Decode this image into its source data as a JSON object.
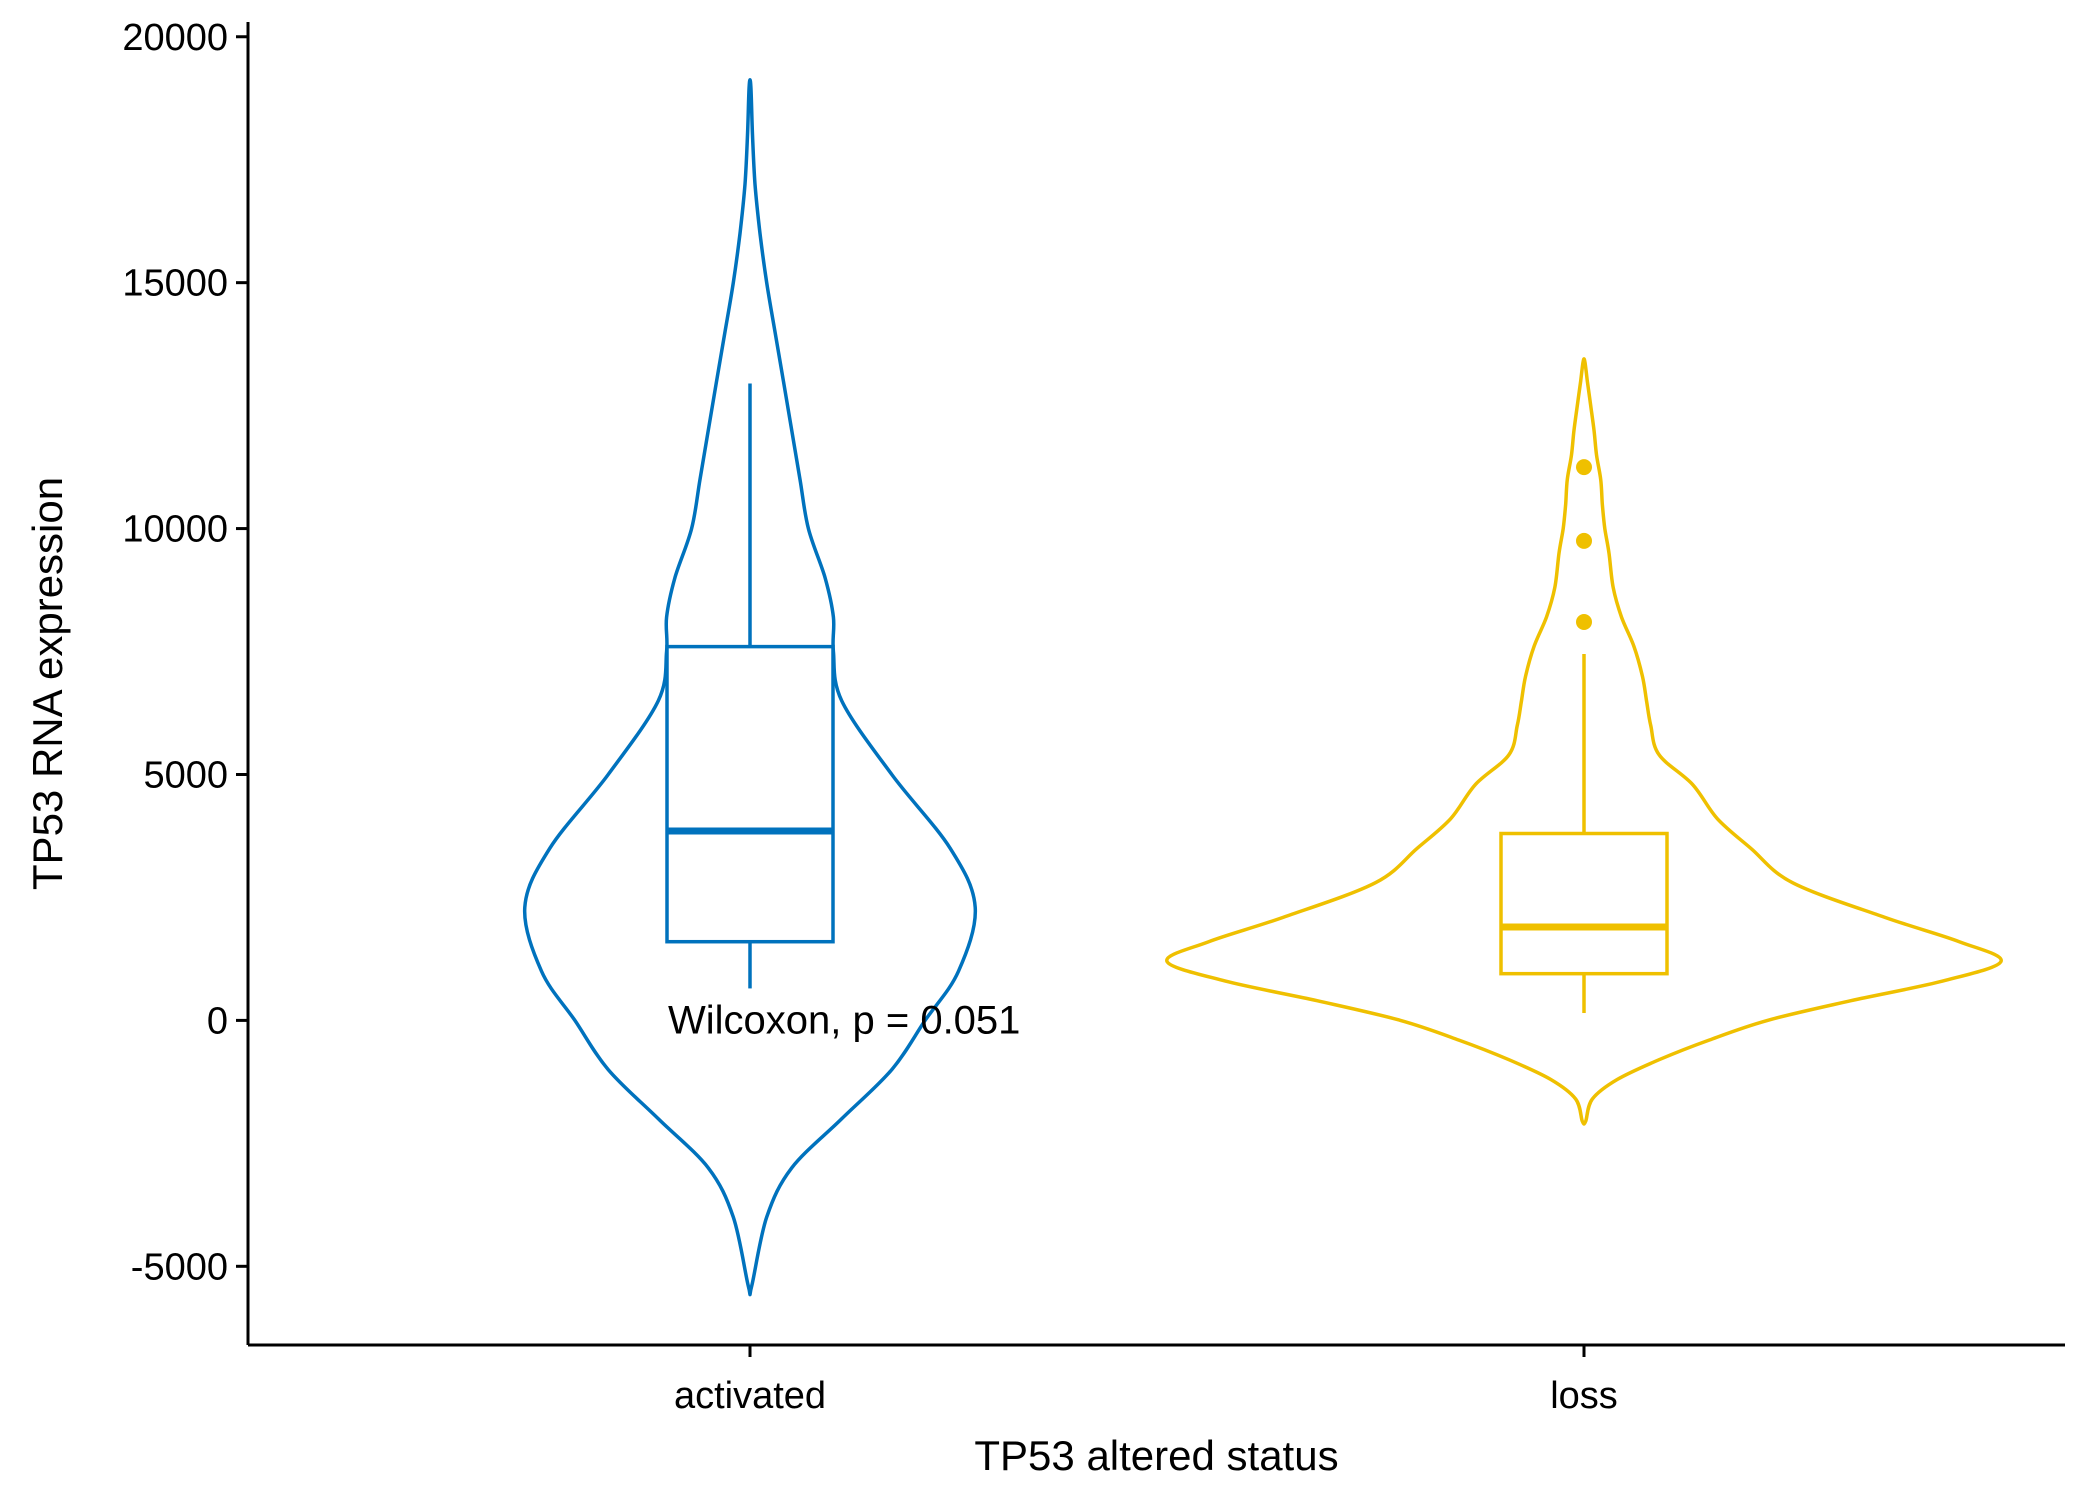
{
  "chart_data": {
    "type": "violin",
    "xlabel": "TP53 altered status",
    "ylabel": "TP53 RNA expression",
    "ylim": [
      -6600,
      20300
    ],
    "yticks": [
      -5000,
      0,
      5000,
      10000,
      15000,
      20000
    ],
    "ytick_labels": [
      "-5000",
      "0",
      "5000",
      "10000",
      "15000",
      "20000"
    ],
    "categories": [
      "activated",
      "loss"
    ],
    "annotation": "Wilcoxon, p = 0.051",
    "grid": false,
    "legend": "none",
    "groups": [
      {
        "category": "activated",
        "color": "#0072BD",
        "violin": {
          "y": [
            -5400,
            -4000,
            -3000,
            -2000,
            -1000,
            0,
            1000,
            2300,
            3500,
            5000,
            6500,
            7500,
            8200,
            9000,
            10000,
            11000,
            12000,
            13000,
            14000,
            15000,
            16000,
            17000,
            18000,
            19000
          ],
          "width": [
            0.002,
            0.02,
            0.05,
            0.11,
            0.17,
            0.21,
            0.25,
            0.27,
            0.24,
            0.17,
            0.11,
            0.1,
            0.1,
            0.09,
            0.07,
            0.06,
            0.05,
            0.04,
            0.03,
            0.02,
            0.012,
            0.006,
            0.003,
            0.001
          ]
        },
        "box": {
          "whisker_low": 650,
          "q1": 1600,
          "median": 3850,
          "q3": 7600,
          "whisker_high": 12950
        },
        "outliers": []
      },
      {
        "category": "loss",
        "color": "#EFC000",
        "violin": {
          "y": [
            -2050,
            -1600,
            -1200,
            -800,
            -400,
            0,
            400,
            800,
            1200,
            1600,
            2100,
            2800,
            3500,
            4100,
            4800,
            5400,
            6000,
            6500,
            7000,
            7600,
            8200,
            8800,
            9500,
            10000,
            10500,
            11000,
            11500,
            12000,
            12500,
            13000,
            13400
          ],
          "width": [
            0.002,
            0.01,
            0.04,
            0.09,
            0.15,
            0.22,
            0.32,
            0.43,
            0.5,
            0.45,
            0.36,
            0.25,
            0.2,
            0.16,
            0.13,
            0.09,
            0.08,
            0.075,
            0.07,
            0.06,
            0.045,
            0.035,
            0.03,
            0.025,
            0.022,
            0.02,
            0.015,
            0.012,
            0.008,
            0.004,
            0.001
          ]
        },
        "box": {
          "whisker_low": 150,
          "q1": 950,
          "median": 1900,
          "q3": 3800,
          "whisker_high": 7450
        },
        "outliers": [
          8100,
          9750,
          11250
        ]
      }
    ]
  }
}
